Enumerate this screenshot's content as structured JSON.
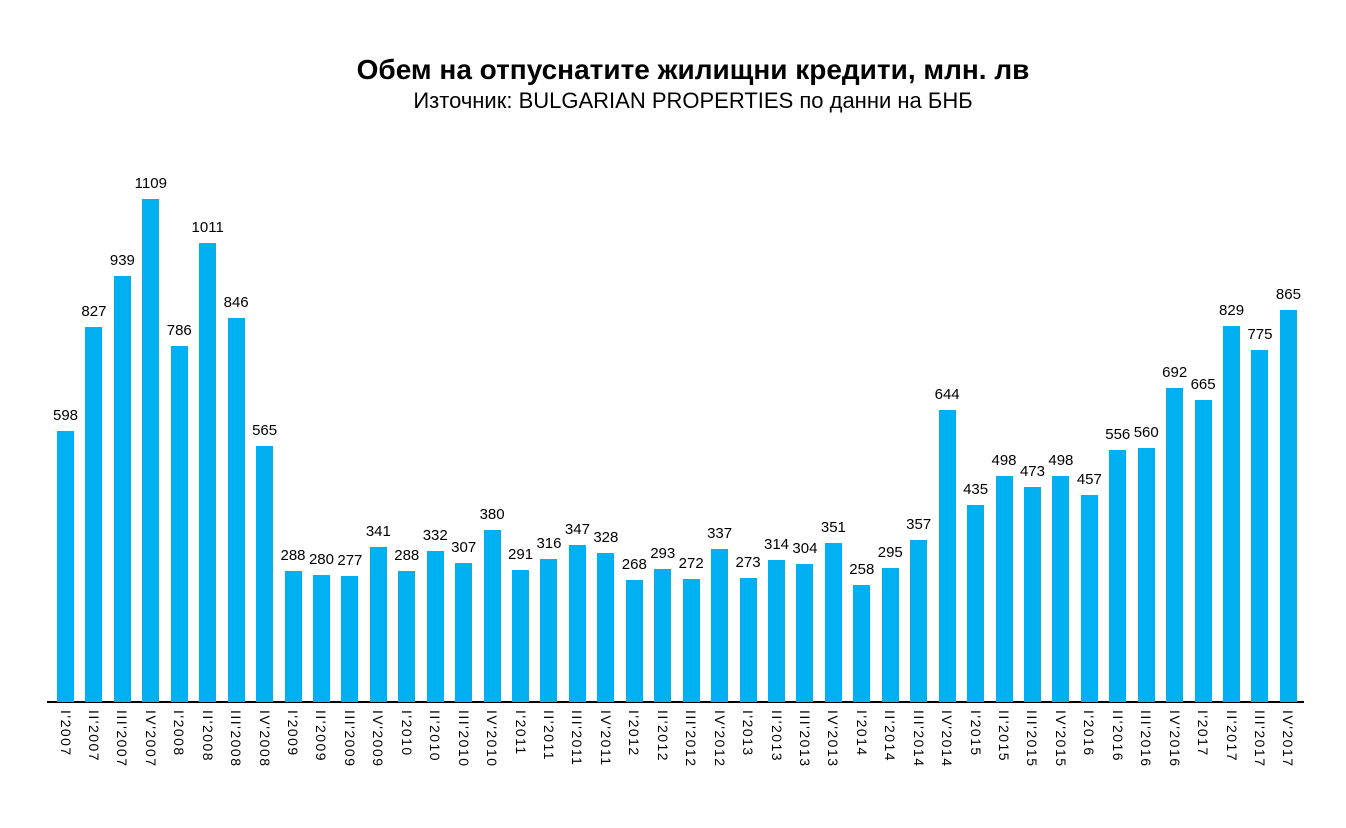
{
  "chart_data": {
    "type": "bar",
    "title": "Обем на отпуснатите жилищни кредити, млн. лв",
    "subtitle": "Източник: BULGARIAN PROPERTIES по данни на БНБ",
    "xlabel": "",
    "ylabel": "",
    "categories": [
      "I'2007",
      "II'2007",
      "III'2007",
      "IV'2007",
      "I'2008",
      "II'2008",
      "III'2008",
      "IV'2008",
      "I'2009",
      "II'2009",
      "III'2009",
      "IV'2009",
      "I'2010",
      "II'2010",
      "III'2010",
      "IV'2010",
      "I'2011",
      "II'2011",
      "III'2011",
      "IV'2011",
      "I'2012",
      "II'2012",
      "III'2012",
      "IV'2012",
      "I'2013",
      "II'2013",
      "III'2013",
      "IV'2013",
      "I'2014",
      "II'2014",
      "III'2014",
      "IV'2014",
      "I'2015",
      "II'2015",
      "III'2015",
      "IV'2015",
      "I'2016",
      "II'2016",
      "III'2016",
      "IV'2016",
      "I'2017",
      "II'2017",
      "III'2017",
      "IV'2017"
    ],
    "values": [
      598,
      827,
      939,
      1109,
      786,
      1011,
      846,
      565,
      288,
      280,
      277,
      341,
      288,
      332,
      307,
      380,
      291,
      316,
      347,
      328,
      268,
      293,
      272,
      337,
      273,
      314,
      304,
      351,
      258,
      295,
      357,
      644,
      435,
      498,
      473,
      498,
      457,
      556,
      560,
      692,
      665,
      829,
      775,
      865
    ],
    "value_labels_shown": true,
    "bar_color": "#00B0F0",
    "axis_color": "#000000",
    "text_color": "#000000",
    "background_color": "#ffffff",
    "ylim": [
      0,
      1200
    ],
    "grid": false,
    "legend": false,
    "y_axis_ticks_shown": false
  }
}
